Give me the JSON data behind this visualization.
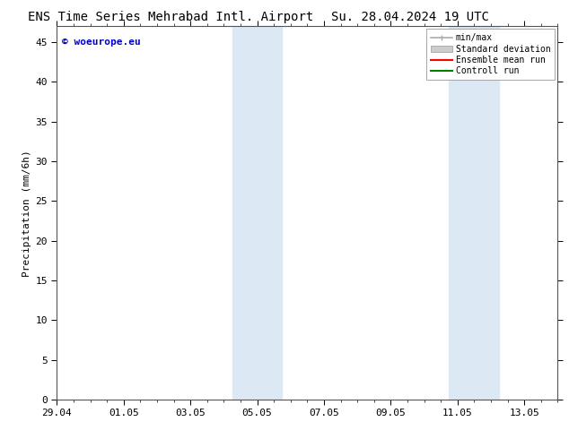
{
  "title_left": "ENS Time Series Mehrabad Intl. Airport",
  "title_right": "Su. 28.04.2024 19 UTC",
  "ylabel": "Precipitation (mm/6h)",
  "watermark": "© woeurope.eu",
  "watermark_color": "#0000cc",
  "ylim": [
    0,
    47
  ],
  "yticks": [
    0,
    5,
    10,
    15,
    20,
    25,
    30,
    35,
    40,
    45
  ],
  "xtick_labels": [
    "29.04",
    "01.05",
    "03.05",
    "05.05",
    "07.05",
    "09.05",
    "11.05",
    "13.05"
  ],
  "xtick_positions": [
    0,
    2,
    4,
    6,
    8,
    10,
    12,
    14
  ],
  "xlim": [
    0,
    15
  ],
  "shaded_bands": [
    {
      "x_start": 5.25,
      "x_end": 6.25,
      "color": "#dce9f5"
    },
    {
      "x_start": 6.25,
      "x_end": 6.75,
      "color": "#dce9f5"
    },
    {
      "x_start": 11.75,
      "x_end": 12.75,
      "color": "#dce9f5"
    },
    {
      "x_start": 12.75,
      "x_end": 13.25,
      "color": "#dce9f5"
    }
  ],
  "legend_labels": [
    "min/max",
    "Standard deviation",
    "Ensemble mean run",
    "Controll run"
  ],
  "legend_minmax_color": "#aaaaaa",
  "legend_std_color": "#cccccc",
  "legend_ens_color": "#ff0000",
  "legend_ctrl_color": "#008000",
  "background_color": "#ffffff",
  "title_fontsize": 10,
  "label_fontsize": 8,
  "tick_fontsize": 8
}
